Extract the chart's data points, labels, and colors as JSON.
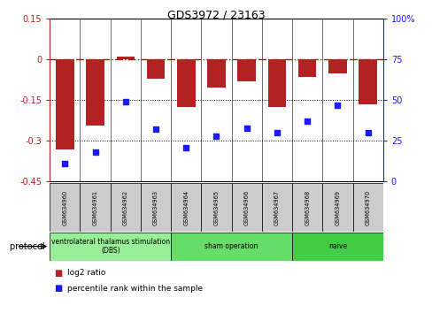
{
  "title": "GDS3972 / 23163",
  "samples": [
    "GSM634960",
    "GSM634961",
    "GSM634962",
    "GSM634963",
    "GSM634964",
    "GSM634965",
    "GSM634966",
    "GSM634967",
    "GSM634968",
    "GSM634969",
    "GSM634970"
  ],
  "log2_ratio": [
    -0.33,
    -0.245,
    0.01,
    -0.07,
    -0.175,
    -0.105,
    -0.08,
    -0.175,
    -0.065,
    -0.05,
    -0.165
  ],
  "percentile_rank": [
    11,
    18,
    49,
    32,
    21,
    28,
    33,
    30,
    37,
    47,
    30
  ],
  "bar_color": "#b22222",
  "dot_color": "#1a1aff",
  "left_ylim": [
    -0.45,
    0.15
  ],
  "left_yticks": [
    0.15,
    0.0,
    -0.15,
    -0.3,
    -0.45
  ],
  "left_yticklabels": [
    "0.15",
    "0",
    "-0.15",
    "-0.3",
    "-0.45"
  ],
  "right_ylim": [
    0,
    100
  ],
  "right_yticks": [
    100,
    75,
    50,
    25,
    0
  ],
  "right_yticklabels": [
    "100%",
    "75",
    "50",
    "25",
    "0"
  ],
  "hline_zero_color": "#cc0000",
  "hline_dotted_color": "#000000",
  "group_starts": [
    0,
    4,
    8
  ],
  "group_ends": [
    3,
    7,
    10
  ],
  "group_labels": [
    "ventrolateral thalamus stimulation\n(DBS)",
    "sham operation",
    "naive"
  ],
  "group_colors": [
    "#99ee99",
    "#66dd66",
    "#44cc44"
  ],
  "legend_log2_label": "log2 ratio",
  "legend_pct_label": "percentile rank within the sample",
  "protocol_label": "protocol"
}
